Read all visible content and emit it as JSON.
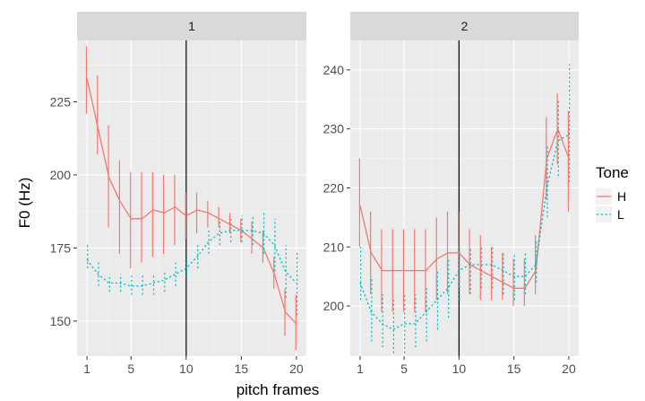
{
  "chart_data": {
    "type": "line",
    "xlabel": "pitch frames",
    "ylabel": "F0 (Hz)",
    "vline_x": 10,
    "legend": {
      "title": "Tone",
      "position": "right",
      "entries": [
        {
          "name": "H",
          "color": "#F8766D",
          "dash": "solid"
        },
        {
          "name": "L",
          "color": "#00BFC4",
          "dash": "dotted"
        }
      ]
    },
    "panels": [
      {
        "strip": "1",
        "xlim": [
          0.1,
          20.9
        ],
        "ylim": [
          138,
          246
        ],
        "x_ticks": [
          1,
          5,
          10,
          15,
          20
        ],
        "y_ticks": [
          150,
          175,
          200,
          225
        ],
        "series": [
          {
            "name": "H",
            "x": [
              1,
              2,
              3,
              4,
              5,
              6,
              7,
              8,
              9,
              10,
              11,
              12,
              13,
              14,
              15,
              16,
              17,
              18,
              19,
              20
            ],
            "y": [
              233,
              216,
              199,
              191,
              185,
              185,
              188,
              187,
              189,
              186,
              188,
              187,
              185,
              183,
              181,
              178,
              175,
              166,
              153,
              149
            ],
            "err_low": [
              221,
              207,
              182,
              173,
              168,
              170,
              172,
              173,
              176,
              178,
              180,
              182,
              182,
              180,
              177,
              173,
              170,
              161,
              145,
              140
            ],
            "err_high": [
              244,
              234,
              217,
              205,
              201,
              201,
              201,
              200,
              200,
              194,
              194,
              191,
              189,
              187,
              185,
              184,
              181,
              172,
              161,
              159
            ]
          },
          {
            "name": "L",
            "x": [
              1,
              2,
              3,
              4,
              5,
              6,
              7,
              8,
              9,
              10,
              11,
              12,
              13,
              14,
              15,
              16,
              17,
              18,
              19,
              20
            ],
            "y": [
              171,
              166,
              163,
              163,
              162,
              162,
              163,
              164,
              166,
              168,
              172,
              177,
              180,
              181,
              181,
              181,
              180,
              176,
              167,
              163
            ],
            "err_low": [
              168,
              162,
              160,
              160,
              159,
              159,
              159,
              160,
              162,
              165,
              168,
              173,
              176,
              177,
              177,
              176,
              173,
              167,
              158,
              152
            ],
            "err_high": [
              176,
              170,
              166,
              166,
              166,
              166,
              166,
              167,
              170,
              172,
              176,
              181,
              184,
              185,
              186,
              186,
              187,
              185,
              176,
              174
            ]
          }
        ]
      },
      {
        "strip": "2",
        "xlim": [
          0.1,
          20.9
        ],
        "ylim": [
          191.5,
          245
        ],
        "x_ticks": [
          1,
          5,
          10,
          15,
          20
        ],
        "y_ticks": [
          200,
          210,
          220,
          230,
          240
        ],
        "series": [
          {
            "name": "H",
            "x": [
              1,
              2,
              3,
              4,
              5,
              6,
              7,
              8,
              9,
              10,
              11,
              12,
              13,
              14,
              15,
              16,
              17,
              18,
              19,
              20
            ],
            "y": [
              217,
              209,
              206,
              206,
              206,
              206,
              206,
              208,
              209,
              209,
              207,
              206,
              205,
              204,
              203,
              203,
              206,
              225,
              230,
              225
            ],
            "err_low": [
              210,
              202,
              199,
              199,
              199,
              199,
              199,
              201,
              202,
              203,
              202,
              201,
              201,
              201,
              200,
              200,
              202,
              218,
              224,
              216
            ],
            "err_high": [
              225,
              216,
              213,
              213,
              213,
              213,
              213,
              215,
              216,
              216,
              213,
              212,
              210,
              209,
              208,
              208,
              212,
              232,
              236,
              233
            ]
          },
          {
            "name": "L",
            "x": [
              1,
              2,
              3,
              4,
              5,
              6,
              7,
              8,
              9,
              10,
              11,
              12,
              13,
              14,
              15,
              16,
              17,
              18,
              19,
              20
            ],
            "y": [
              204,
              199,
              197,
              196,
              197,
              197,
              199,
              201,
              203,
              206,
              207,
              207,
              207,
              206,
              205,
              205,
              207,
              220,
              228,
              229
            ],
            "err_low": [
              201,
              194,
              193,
              192,
              192,
              193,
              194,
              196,
              198,
              201,
              202,
              203,
              203,
              202,
              201,
              202,
              204,
              215,
              222,
              221
            ],
            "err_high": [
              210,
              205,
              202,
              201,
              202,
              202,
              203,
              206,
              208,
              210,
              210,
              210,
              210,
              209,
              209,
              209,
              211,
              227,
              235,
              241
            ]
          }
        ]
      }
    ]
  }
}
